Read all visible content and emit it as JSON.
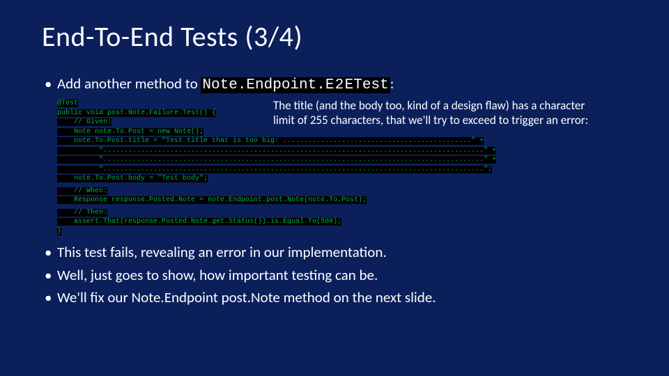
{
  "title": "End-To-End Tests (3/4)",
  "topBullet": {
    "prefix": "Add another method to ",
    "className": "Note.Endpoint.E 2 ETest",
    "suffix": ":"
  },
  "annotation": {
    "line1": "The title (and the body too, kind of a design flaw) has a character",
    "line2": "limit of 255 characters, that we'll try to exceed to trigger an error:"
  },
  "code": {
    "l01": "@Test",
    "l02": "public void post.Note.Failure.Test() {",
    "l03": "    // Given:",
    "l04": "    Note note.To.Post = new Note();",
    "l05": "    note.To.Post.title = \"Test title that is too big: .............................................\" +",
    "l06": "          \"...........................................................................................\" +",
    "l07": "          \"...........................................................................................\" +",
    "l08": "          \"...........................................................................................\";",
    "l09": "    note.To.Post.body = \"Test body\";",
    "l10": "    // When:",
    "l11": "    Response response.Posted.Note = note.Endpoint.post.Note(note.To.Post);",
    "l12": "    // Then:",
    "l13": "    assert.That(response.Posted.Note.get.Status()).is.Equal.To(500);",
    "l14": "}"
  },
  "bottomBullets": {
    "b1": "This test fails, revealing an error in our implementation.",
    "b2": "Well, just goes to show, how important testing can be.",
    "b3": "We'll fix our Note.Endpoint post.Note method on the next slide."
  },
  "colors": {
    "background": "#0b1f5b",
    "codeText": "#00b050",
    "codeBg": "#000000",
    "text": "#ffffff"
  }
}
